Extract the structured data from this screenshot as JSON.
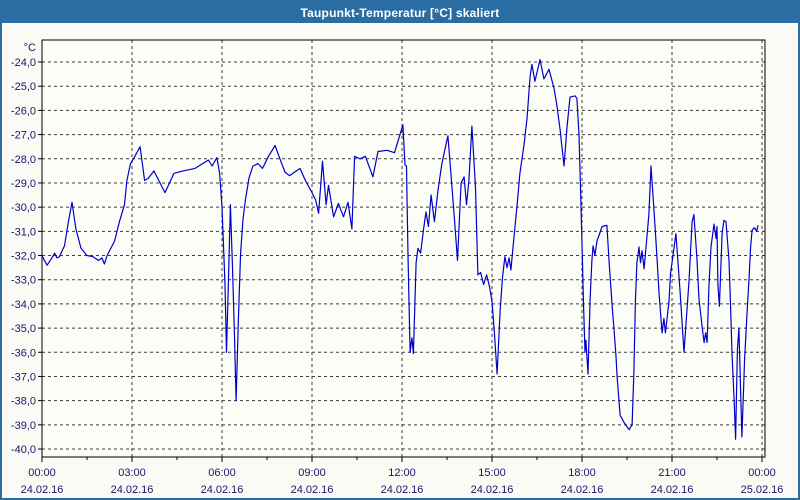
{
  "window": {
    "title": "Taupunkt-Temperatur [°C] skaliert"
  },
  "colors": {
    "titlebar_bg": "#2A6DA3",
    "frame_border": "#2A6DA3",
    "page_bg": "#FBFAF4",
    "plot_bg": "#FDFDF8",
    "grid": "#3a3a3a",
    "axis": "#000000",
    "label": "#16166B",
    "line": "#0000CC",
    "title_text": "#ffffff"
  },
  "chart_data": {
    "type": "line",
    "title": "Taupunkt-Temperatur [°C] skaliert",
    "xlabel": "",
    "ylabel": "°C",
    "y_unit_label": "°C",
    "ylim": [
      -40.33,
      -23.09
    ],
    "xlim_hours": [
      0,
      24.1
    ],
    "grid": "dashed",
    "legend_position": "none",
    "y_ticks": [
      {
        "v": -24,
        "label": "-24,0"
      },
      {
        "v": -25,
        "label": "-25,0"
      },
      {
        "v": -26,
        "label": "-26,0"
      },
      {
        "v": -27,
        "label": "-27,0"
      },
      {
        "v": -28,
        "label": "-28,0"
      },
      {
        "v": -29,
        "label": "-29,0"
      },
      {
        "v": -30,
        "label": "-30,0"
      },
      {
        "v": -31,
        "label": "-31,0"
      },
      {
        "v": -32,
        "label": "-32,0"
      },
      {
        "v": -33,
        "label": "-33,0"
      },
      {
        "v": -34,
        "label": "-34,0"
      },
      {
        "v": -35,
        "label": "-35,0"
      },
      {
        "v": -36,
        "label": "-36,0"
      },
      {
        "v": -37,
        "label": "-37,0"
      },
      {
        "v": -38,
        "label": "-38,0"
      },
      {
        "v": -39,
        "label": "-39,0"
      },
      {
        "v": -40,
        "label": "-40,0"
      }
    ],
    "x_ticks": [
      {
        "h": 0,
        "time": "00:00",
        "date": "24.02.16"
      },
      {
        "h": 3,
        "time": "03:00",
        "date": "24.02.16"
      },
      {
        "h": 6,
        "time": "06:00",
        "date": "24.02.16"
      },
      {
        "h": 9,
        "time": "09:00",
        "date": "24.02.16"
      },
      {
        "h": 12,
        "time": "12:00",
        "date": "24.02.16"
      },
      {
        "h": 15,
        "time": "15:00",
        "date": "24.02.16"
      },
      {
        "h": 18,
        "time": "18:00",
        "date": "24.02.16"
      },
      {
        "h": 21,
        "time": "21:00",
        "date": "24.02.16"
      },
      {
        "h": 24,
        "time": "00:00",
        "date": "25.02.16"
      }
    ],
    "minor_x_step_hours": 1.5,
    "series": [
      {
        "name": "Taupunkt-Temperatur",
        "color": "#0000CC",
        "points": [
          [
            0.0,
            -32.0
          ],
          [
            0.08,
            -32.2
          ],
          [
            0.17,
            -32.4
          ],
          [
            0.33,
            -32.1
          ],
          [
            0.42,
            -31.9
          ],
          [
            0.5,
            -32.1
          ],
          [
            0.58,
            -32.05
          ],
          [
            0.75,
            -31.6
          ],
          [
            0.88,
            -30.6
          ],
          [
            1.0,
            -29.8
          ],
          [
            1.13,
            -30.9
          ],
          [
            1.3,
            -31.7
          ],
          [
            1.5,
            -32.0
          ],
          [
            1.7,
            -32.05
          ],
          [
            1.88,
            -32.2
          ],
          [
            2.0,
            -32.1
          ],
          [
            2.08,
            -32.35
          ],
          [
            2.17,
            -32.0
          ],
          [
            2.42,
            -31.4
          ],
          [
            2.58,
            -30.6
          ],
          [
            2.75,
            -29.9
          ],
          [
            2.83,
            -28.9
          ],
          [
            2.95,
            -28.2
          ],
          [
            3.05,
            -28.0
          ],
          [
            3.27,
            -27.5
          ],
          [
            3.42,
            -28.9
          ],
          [
            3.55,
            -28.8
          ],
          [
            3.73,
            -28.5
          ],
          [
            4.1,
            -29.4
          ],
          [
            4.4,
            -28.6
          ],
          [
            4.7,
            -28.5
          ],
          [
            5.1,
            -28.4
          ],
          [
            5.55,
            -28.05
          ],
          [
            5.67,
            -28.3
          ],
          [
            5.83,
            -27.95
          ],
          [
            5.92,
            -28.6
          ],
          [
            6.0,
            -30.0
          ],
          [
            6.05,
            -31.6
          ],
          [
            6.1,
            -33.2
          ],
          [
            6.15,
            -36.0
          ],
          [
            6.22,
            -32.8
          ],
          [
            6.28,
            -29.9
          ],
          [
            6.35,
            -32.5
          ],
          [
            6.42,
            -35.5
          ],
          [
            6.47,
            -38.0
          ],
          [
            6.55,
            -34.5
          ],
          [
            6.62,
            -31.9
          ],
          [
            6.7,
            -30.5
          ],
          [
            6.78,
            -29.7
          ],
          [
            6.9,
            -28.8
          ],
          [
            7.03,
            -28.3
          ],
          [
            7.2,
            -28.2
          ],
          [
            7.35,
            -28.4
          ],
          [
            7.55,
            -27.9
          ],
          [
            7.77,
            -27.45
          ],
          [
            7.93,
            -28.0
          ],
          [
            8.1,
            -28.55
          ],
          [
            8.25,
            -28.7
          ],
          [
            8.42,
            -28.55
          ],
          [
            8.6,
            -28.4
          ],
          [
            8.78,
            -28.9
          ],
          [
            9.0,
            -29.4
          ],
          [
            9.12,
            -29.7
          ],
          [
            9.22,
            -30.25
          ],
          [
            9.35,
            -28.1
          ],
          [
            9.47,
            -29.9
          ],
          [
            9.55,
            -29.1
          ],
          [
            9.72,
            -30.4
          ],
          [
            9.88,
            -29.85
          ],
          [
            10.05,
            -30.4
          ],
          [
            10.2,
            -29.8
          ],
          [
            10.33,
            -30.9
          ],
          [
            10.42,
            -27.9
          ],
          [
            10.6,
            -28.0
          ],
          [
            10.78,
            -27.9
          ],
          [
            11.03,
            -28.75
          ],
          [
            11.2,
            -27.7
          ],
          [
            11.5,
            -27.65
          ],
          [
            11.75,
            -27.75
          ],
          [
            12.03,
            -26.6
          ],
          [
            12.1,
            -28.25
          ],
          [
            12.15,
            -28.3
          ],
          [
            12.2,
            -32.0
          ],
          [
            12.27,
            -36.0
          ],
          [
            12.33,
            -35.4
          ],
          [
            12.38,
            -36.05
          ],
          [
            12.47,
            -32.3
          ],
          [
            12.53,
            -31.7
          ],
          [
            12.62,
            -31.9
          ],
          [
            12.72,
            -30.9
          ],
          [
            12.8,
            -30.2
          ],
          [
            12.88,
            -30.8
          ],
          [
            12.97,
            -29.5
          ],
          [
            13.08,
            -30.6
          ],
          [
            13.2,
            -29.3
          ],
          [
            13.33,
            -28.2
          ],
          [
            13.45,
            -27.5
          ],
          [
            13.53,
            -27.05
          ],
          [
            13.63,
            -28.6
          ],
          [
            13.73,
            -30.2
          ],
          [
            13.85,
            -32.2
          ],
          [
            13.97,
            -29.0
          ],
          [
            14.07,
            -28.75
          ],
          [
            14.15,
            -29.9
          ],
          [
            14.23,
            -28.9
          ],
          [
            14.33,
            -26.65
          ],
          [
            14.45,
            -29.2
          ],
          [
            14.53,
            -32.8
          ],
          [
            14.62,
            -32.7
          ],
          [
            14.72,
            -33.2
          ],
          [
            14.82,
            -32.8
          ],
          [
            14.92,
            -33.3
          ],
          [
            15.0,
            -33.9
          ],
          [
            15.08,
            -35.2
          ],
          [
            15.17,
            -36.9
          ],
          [
            15.27,
            -34.3
          ],
          [
            15.35,
            -32.9
          ],
          [
            15.43,
            -32.05
          ],
          [
            15.5,
            -32.5
          ],
          [
            15.57,
            -32.1
          ],
          [
            15.63,
            -32.6
          ],
          [
            15.72,
            -31.4
          ],
          [
            15.83,
            -30.0
          ],
          [
            15.93,
            -28.6
          ],
          [
            16.07,
            -27.4
          ],
          [
            16.17,
            -26.3
          ],
          [
            16.27,
            -24.6
          ],
          [
            16.33,
            -24.1
          ],
          [
            16.43,
            -24.8
          ],
          [
            16.6,
            -23.9
          ],
          [
            16.73,
            -24.7
          ],
          [
            16.9,
            -24.3
          ],
          [
            17.07,
            -25.1
          ],
          [
            17.17,
            -25.85
          ],
          [
            17.27,
            -26.8
          ],
          [
            17.4,
            -28.3
          ],
          [
            17.5,
            -26.7
          ],
          [
            17.6,
            -25.45
          ],
          [
            17.77,
            -25.4
          ],
          [
            17.83,
            -25.5
          ],
          [
            17.9,
            -27.0
          ],
          [
            17.95,
            -29.2
          ],
          [
            18.0,
            -31.5
          ],
          [
            18.05,
            -34.0
          ],
          [
            18.1,
            -36.0
          ],
          [
            18.13,
            -35.5
          ],
          [
            18.2,
            -36.9
          ],
          [
            18.27,
            -33.8
          ],
          [
            18.33,
            -32.2
          ],
          [
            18.37,
            -31.6
          ],
          [
            18.43,
            -32.0
          ],
          [
            18.5,
            -31.4
          ],
          [
            18.67,
            -30.8
          ],
          [
            18.83,
            -30.75
          ],
          [
            18.9,
            -32.2
          ],
          [
            19.0,
            -34.0
          ],
          [
            19.07,
            -35.1
          ],
          [
            19.13,
            -36.1
          ],
          [
            19.17,
            -37.0
          ],
          [
            19.27,
            -38.6
          ],
          [
            19.4,
            -38.9
          ],
          [
            19.57,
            -39.2
          ],
          [
            19.67,
            -39.0
          ],
          [
            19.73,
            -36.8
          ],
          [
            19.78,
            -33.9
          ],
          [
            19.83,
            -32.3
          ],
          [
            19.9,
            -31.65
          ],
          [
            19.95,
            -32.3
          ],
          [
            20.0,
            -31.8
          ],
          [
            20.07,
            -32.55
          ],
          [
            20.17,
            -31.15
          ],
          [
            20.23,
            -30.3
          ],
          [
            20.3,
            -28.3
          ],
          [
            20.43,
            -30.7
          ],
          [
            20.5,
            -32.1
          ],
          [
            20.57,
            -33.6
          ],
          [
            20.67,
            -35.2
          ],
          [
            20.73,
            -34.6
          ],
          [
            20.78,
            -35.2
          ],
          [
            20.9,
            -33.9
          ],
          [
            20.95,
            -32.75
          ],
          [
            21.0,
            -32.3
          ],
          [
            21.13,
            -31.1
          ],
          [
            21.27,
            -33.5
          ],
          [
            21.4,
            -36.0
          ],
          [
            21.57,
            -33.0
          ],
          [
            21.67,
            -30.6
          ],
          [
            21.73,
            -30.3
          ],
          [
            21.83,
            -32.1
          ],
          [
            21.9,
            -33.8
          ],
          [
            22.0,
            -34.9
          ],
          [
            22.07,
            -35.6
          ],
          [
            22.12,
            -35.2
          ],
          [
            22.17,
            -35.6
          ],
          [
            22.23,
            -33.3
          ],
          [
            22.3,
            -31.65
          ],
          [
            22.4,
            -30.7
          ],
          [
            22.47,
            -31.3
          ],
          [
            22.5,
            -30.8
          ],
          [
            22.53,
            -33.2
          ],
          [
            22.58,
            -34.1
          ],
          [
            22.67,
            -31.1
          ],
          [
            22.73,
            -30.55
          ],
          [
            22.8,
            -30.6
          ],
          [
            22.9,
            -32.2
          ],
          [
            22.95,
            -34.0
          ],
          [
            23.0,
            -36.05
          ],
          [
            23.07,
            -37.95
          ],
          [
            23.12,
            -39.6
          ],
          [
            23.18,
            -35.9
          ],
          [
            23.23,
            -35.0
          ],
          [
            23.33,
            -39.5
          ],
          [
            23.42,
            -36.3
          ],
          [
            23.5,
            -34.4
          ],
          [
            23.57,
            -32.9
          ],
          [
            23.62,
            -31.65
          ],
          [
            23.67,
            -30.95
          ],
          [
            23.75,
            -30.85
          ],
          [
            23.82,
            -31.0
          ],
          [
            23.87,
            -30.75
          ]
        ]
      }
    ]
  }
}
